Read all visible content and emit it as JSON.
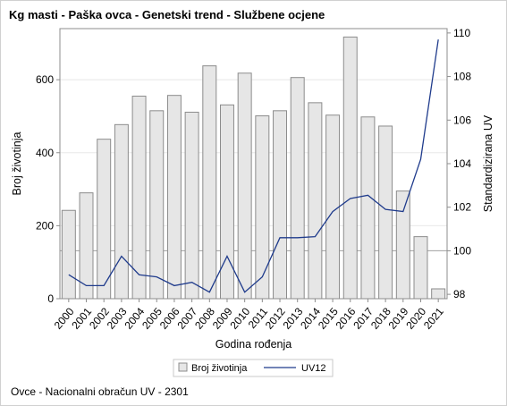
{
  "title": "Kg masti - Paška ovca - Genetski trend - Službene ocjene",
  "footnote": "Ovce - Nacionalni obračun UV - 2301",
  "colors": {
    "bar_fill": "#e6e6e6",
    "bar_stroke": "#8c8c8c",
    "line": "#1f3b8c",
    "frame": "#8c8c8c",
    "grid": "#e8e8e8",
    "reference_line": "#a0a0a0"
  },
  "chart_data": {
    "type": "bar",
    "title": "Kg masti - Paška ovca - Genetski trend - Službene ocjene",
    "xlabel": "Godina rođenja",
    "ylabel": "Broj životinja",
    "y2label": "Standardizirana UV",
    "categories": [
      "2000",
      "2001",
      "2002",
      "2003",
      "2004",
      "2005",
      "2006",
      "2007",
      "2008",
      "2009",
      "2010",
      "2011",
      "2012",
      "2013",
      "2014",
      "2015",
      "2016",
      "2017",
      "2018",
      "2019",
      "2020",
      "2021"
    ],
    "series": [
      {
        "name": "Broj životinja",
        "type": "bar",
        "axis": "left",
        "values": [
          242,
          290,
          437,
          477,
          555,
          515,
          557,
          511,
          638,
          531,
          618,
          501,
          515,
          606,
          537,
          503,
          717,
          498,
          473,
          295,
          170,
          27
        ]
      },
      {
        "name": "UV12",
        "type": "line",
        "axis": "right",
        "values": [
          98.9,
          98.4,
          98.4,
          99.75,
          98.9,
          98.8,
          98.4,
          98.55,
          98.1,
          99.75,
          98.1,
          98.8,
          100.6,
          100.6,
          100.65,
          101.8,
          102.4,
          102.55,
          101.9,
          101.8,
          104.2,
          109.7
        ]
      }
    ],
    "ylim": [
      0,
      740
    ],
    "yticks": [
      0,
      200,
      400,
      600
    ],
    "y2lim": [
      97.8,
      110.2
    ],
    "y2ticks": [
      98,
      100,
      102,
      104,
      106,
      108,
      110
    ],
    "reference_line_y2": 100,
    "grid": true,
    "legend": "bottom-center"
  }
}
